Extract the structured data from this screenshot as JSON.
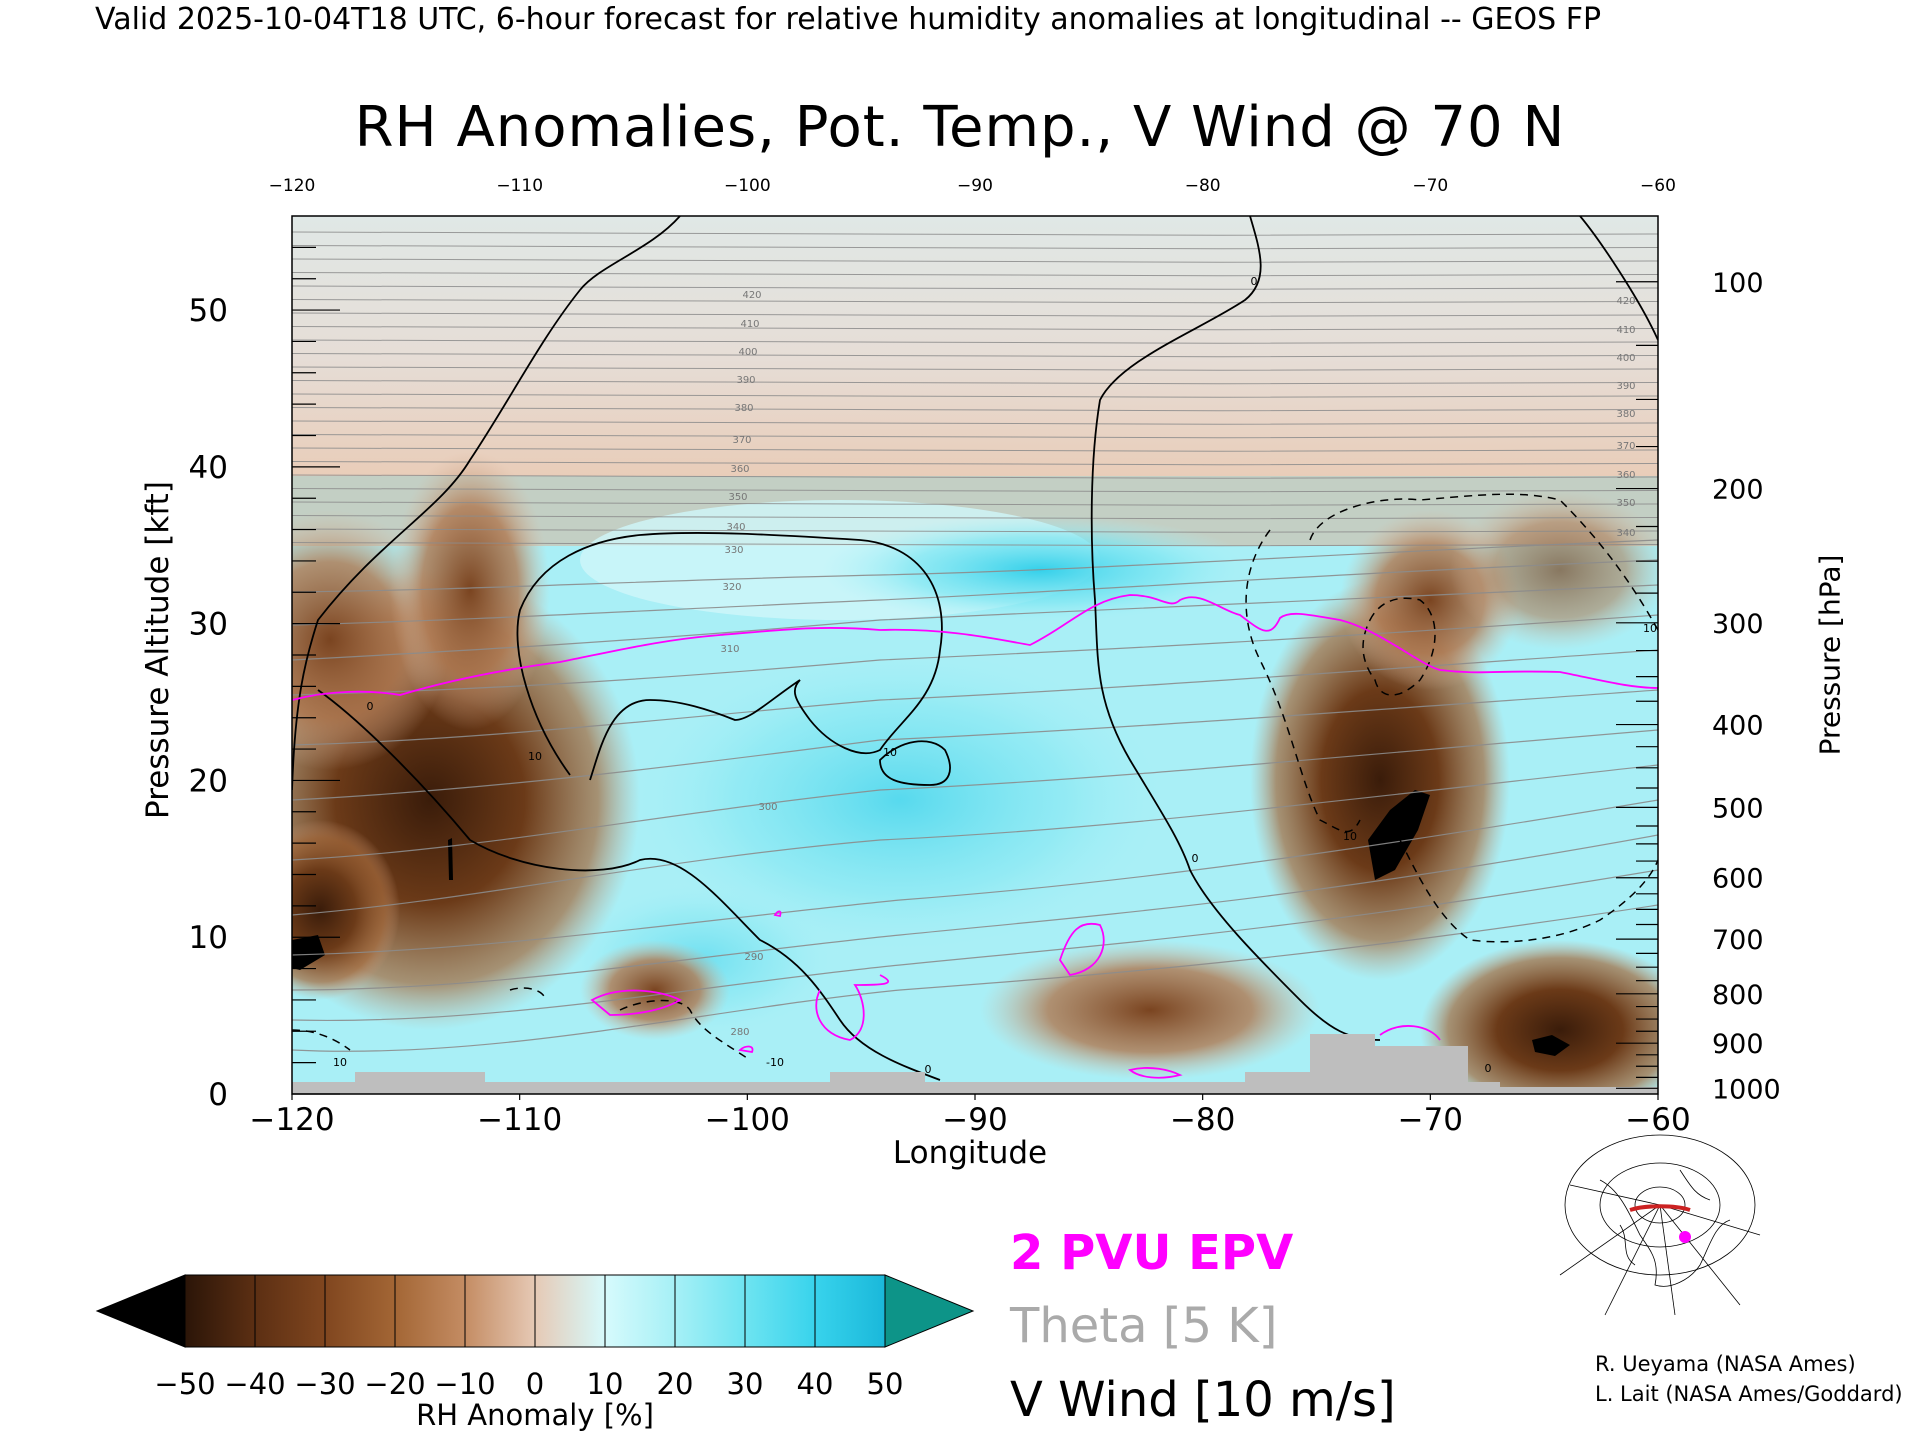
{
  "header": "Valid 2025-10-04T18 UTC, 6-hour forecast for relative humidity anomalies at longitudinal -- GEOS FP",
  "chart_data": {
    "type": "heatmap",
    "title": "RH Anomalies, Pot. Temp., V Wind @ 70 N",
    "xlabel": "Longitude",
    "ylabel": "Pressure Altitude [kft]",
    "y2label": "Pressure [hPa]",
    "xlim": [
      -120,
      -60
    ],
    "ylim": [
      0,
      56
    ],
    "x_ticks": [
      -120,
      -110,
      -100,
      -90,
      -80,
      -70,
      -60
    ],
    "y_ticks": [
      0,
      10,
      20,
      30,
      40,
      50
    ],
    "pressure_ticks": [
      100,
      200,
      300,
      400,
      500,
      600,
      700,
      800,
      900,
      1000
    ],
    "theta_labels": [
      280,
      290,
      300,
      310,
      320,
      330,
      340,
      350,
      360,
      370,
      380,
      390,
      400,
      410,
      420
    ],
    "wind_contour_labels": [
      "0",
      "10",
      "-10"
    ],
    "colorbar": {
      "label": "RH Anomaly [%]",
      "ticks": [
        -50,
        -40,
        -30,
        -20,
        -10,
        0,
        10,
        20,
        30,
        40,
        50
      ],
      "colors": [
        "#2b1508",
        "#5c2f13",
        "#80461f",
        "#a36635",
        "#c48c63",
        "#e6c9b5",
        "#d6fafc",
        "#a6f0f6",
        "#6ee4f1",
        "#38d3ec",
        "#1ab8da",
        "#0e8aa8"
      ],
      "low_color": "#000000",
      "high_color": "#0d9488"
    },
    "anomaly_regions": [
      {
        "lon": -113,
        "kft": 16,
        "rh": -45
      },
      {
        "lon": -119,
        "kft": 10,
        "rh": -50
      },
      {
        "lon": -71,
        "kft": 16,
        "rh": -50
      },
      {
        "lon": -65,
        "kft": 3,
        "rh": -50
      },
      {
        "lon": -82,
        "kft": 5,
        "rh": -30
      },
      {
        "lon": -104,
        "kft": 6,
        "rh": -25
      },
      {
        "lon": -88,
        "kft": 33,
        "rh": 30
      },
      {
        "lon": -95,
        "kft": 18,
        "rh": 20
      }
    ]
  },
  "legend": {
    "epv": "2 PVU EPV",
    "theta": "Theta [5 K]",
    "wind": "V Wind [10 m/s]"
  },
  "credits": [
    "R. Ueyama (NASA Ames)",
    "L. Lait (NASA Ames/Goddard)"
  ]
}
